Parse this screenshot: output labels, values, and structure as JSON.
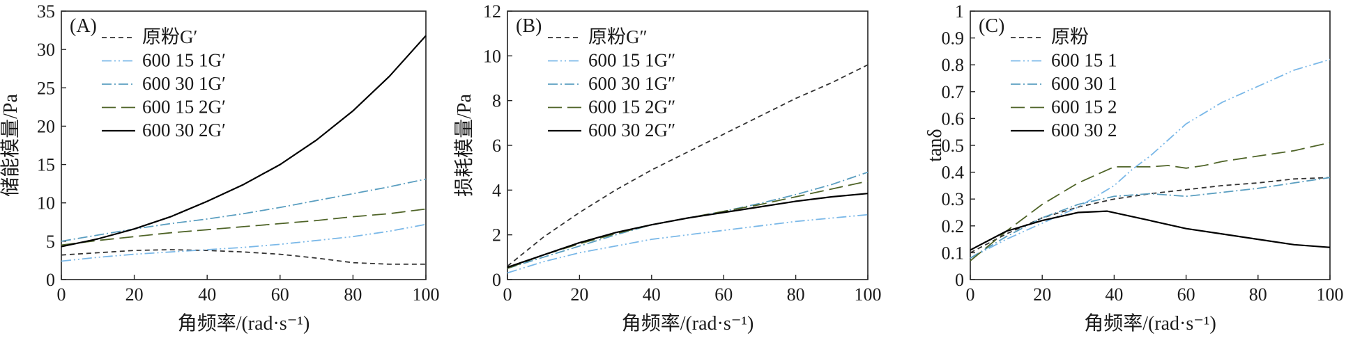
{
  "chart_data": [
    {
      "type": "line",
      "panel_label": "(A)",
      "xlabel": "角频率/(rad·s⁻¹)",
      "ylabel": "储能模量/Pa",
      "xlim": [
        0,
        100
      ],
      "ylim": [
        0,
        35
      ],
      "xticks": [
        0,
        20,
        40,
        60,
        80,
        100
      ],
      "yticks": [
        0,
        5,
        10,
        15,
        20,
        25,
        30,
        35
      ],
      "legend_position": "top-left",
      "series": [
        {
          "name": "原粉G′",
          "style": "short-dash",
          "color": "#333333",
          "x": [
            0,
            10,
            20,
            30,
            40,
            50,
            60,
            70,
            80,
            90,
            100
          ],
          "y": [
            3.2,
            3.5,
            3.8,
            3.9,
            3.8,
            3.6,
            3.3,
            2.8,
            2.2,
            2.0,
            2.0
          ]
        },
        {
          "name": "600 15 1G′",
          "style": "dash-dot-dot",
          "color": "#7ab8e8",
          "x": [
            0,
            10,
            20,
            30,
            40,
            50,
            60,
            70,
            80,
            90,
            100
          ],
          "y": [
            2.4,
            2.9,
            3.3,
            3.6,
            3.9,
            4.2,
            4.6,
            5.1,
            5.6,
            6.3,
            7.2
          ]
        },
        {
          "name": "600 30 1G′",
          "style": "dash-dot",
          "color": "#5a9ec0",
          "x": [
            0,
            10,
            20,
            30,
            40,
            50,
            60,
            70,
            80,
            90,
            100
          ],
          "y": [
            5.0,
            5.8,
            6.6,
            7.3,
            7.9,
            8.6,
            9.4,
            10.3,
            11.2,
            12.1,
            13.1
          ]
        },
        {
          "name": "600 15 2G′",
          "style": "long-dash",
          "color": "#4f6428",
          "x": [
            0,
            10,
            20,
            30,
            40,
            50,
            60,
            70,
            80,
            90,
            100
          ],
          "y": [
            4.5,
            5.1,
            5.6,
            6.1,
            6.5,
            6.9,
            7.3,
            7.7,
            8.2,
            8.6,
            9.2
          ]
        },
        {
          "name": "600 30 2G′",
          "style": "solid",
          "color": "#000000",
          "x": [
            0,
            10,
            20,
            30,
            40,
            50,
            60,
            70,
            80,
            90,
            100
          ],
          "y": [
            4.3,
            5.3,
            6.6,
            8.2,
            10.2,
            12.4,
            15.0,
            18.2,
            22.0,
            26.5,
            31.8
          ]
        }
      ]
    },
    {
      "type": "line",
      "panel_label": "(B)",
      "xlabel": "角频率/(rad·s⁻¹)",
      "ylabel": "损耗模量/Pa",
      "xlim": [
        0,
        100
      ],
      "ylim": [
        0,
        12
      ],
      "xticks": [
        0,
        20,
        40,
        60,
        80,
        100
      ],
      "yticks": [
        0,
        2,
        4,
        6,
        8,
        10,
        12
      ],
      "legend_position": "top-left",
      "series": [
        {
          "name": "原粉G″",
          "style": "short-dash",
          "color": "#333333",
          "x": [
            0,
            10,
            20,
            30,
            40,
            50,
            60,
            70,
            80,
            90,
            100
          ],
          "y": [
            0.6,
            1.9,
            3.0,
            4.0,
            4.9,
            5.7,
            6.5,
            7.3,
            8.1,
            8.8,
            9.6
          ]
        },
        {
          "name": "600 15 1G″",
          "style": "dash-dot-dot",
          "color": "#7ab8e8",
          "x": [
            0,
            10,
            20,
            30,
            40,
            50,
            60,
            70,
            80,
            90,
            100
          ],
          "y": [
            0.3,
            0.8,
            1.2,
            1.5,
            1.8,
            2.0,
            2.2,
            2.4,
            2.6,
            2.75,
            2.9
          ]
        },
        {
          "name": "600 30 1G″",
          "style": "dash-dot",
          "color": "#5a9ec0",
          "x": [
            0,
            10,
            20,
            30,
            40,
            50,
            60,
            70,
            80,
            90,
            100
          ],
          "y": [
            0.5,
            1.0,
            1.5,
            2.0,
            2.45,
            2.75,
            3.05,
            3.4,
            3.8,
            4.25,
            4.8
          ]
        },
        {
          "name": "600 15 2G″",
          "style": "long-dash",
          "color": "#4f6428",
          "x": [
            0,
            10,
            20,
            30,
            40,
            50,
            60,
            70,
            80,
            90,
            100
          ],
          "y": [
            0.5,
            1.1,
            1.6,
            2.05,
            2.45,
            2.75,
            3.05,
            3.35,
            3.7,
            4.05,
            4.4
          ]
        },
        {
          "name": "600 30 2G″",
          "style": "solid",
          "color": "#000000",
          "x": [
            0,
            10,
            20,
            30,
            40,
            50,
            60,
            70,
            80,
            90,
            100
          ],
          "y": [
            0.55,
            1.1,
            1.65,
            2.1,
            2.45,
            2.75,
            3.0,
            3.25,
            3.5,
            3.7,
            3.85
          ]
        }
      ]
    },
    {
      "type": "line",
      "panel_label": "(C)",
      "xlabel": "角频率/(rad·s⁻¹)",
      "ylabel": "tanδ",
      "xlim": [
        0,
        100
      ],
      "ylim": [
        0,
        1.0
      ],
      "xticks": [
        0,
        20,
        40,
        60,
        80,
        100
      ],
      "yticks": [
        0,
        0.1,
        0.2,
        0.3,
        0.4,
        0.5,
        0.6,
        0.7,
        0.8,
        0.9,
        1.0
      ],
      "legend_position": "top-left",
      "series": [
        {
          "name": "原粉",
          "style": "short-dash",
          "color": "#333333",
          "x": [
            0,
            10,
            20,
            30,
            40,
            50,
            60,
            70,
            80,
            90,
            100
          ],
          "y": [
            0.1,
            0.17,
            0.23,
            0.27,
            0.3,
            0.32,
            0.335,
            0.35,
            0.36,
            0.375,
            0.38
          ]
        },
        {
          "name": "600 15 1",
          "style": "dash-dot-dot",
          "color": "#7ab8e8",
          "x": [
            0,
            10,
            20,
            30,
            40,
            45,
            50,
            55,
            60,
            65,
            70,
            80,
            90,
            100
          ],
          "y": [
            0.08,
            0.15,
            0.21,
            0.27,
            0.35,
            0.41,
            0.46,
            0.52,
            0.58,
            0.62,
            0.66,
            0.72,
            0.78,
            0.82
          ]
        },
        {
          "name": "600 30 1",
          "style": "dash-dot",
          "color": "#5a9ec0",
          "x": [
            0,
            10,
            20,
            30,
            40,
            50,
            60,
            70,
            80,
            90,
            100
          ],
          "y": [
            0.08,
            0.16,
            0.23,
            0.28,
            0.31,
            0.32,
            0.31,
            0.325,
            0.34,
            0.36,
            0.38
          ]
        },
        {
          "name": "600 15 2",
          "style": "long-dash",
          "color": "#4f6428",
          "x": [
            0,
            10,
            20,
            30,
            40,
            50,
            55,
            60,
            65,
            70,
            80,
            90,
            100
          ],
          "y": [
            0.07,
            0.18,
            0.28,
            0.36,
            0.42,
            0.42,
            0.425,
            0.415,
            0.425,
            0.44,
            0.46,
            0.48,
            0.51
          ]
        },
        {
          "name": "600 30 2",
          "style": "solid",
          "color": "#000000",
          "x": [
            0,
            10,
            20,
            30,
            38,
            50,
            60,
            70,
            80,
            90,
            100
          ],
          "y": [
            0.11,
            0.18,
            0.22,
            0.25,
            0.255,
            0.22,
            0.19,
            0.17,
            0.15,
            0.13,
            0.12
          ]
        }
      ]
    }
  ]
}
